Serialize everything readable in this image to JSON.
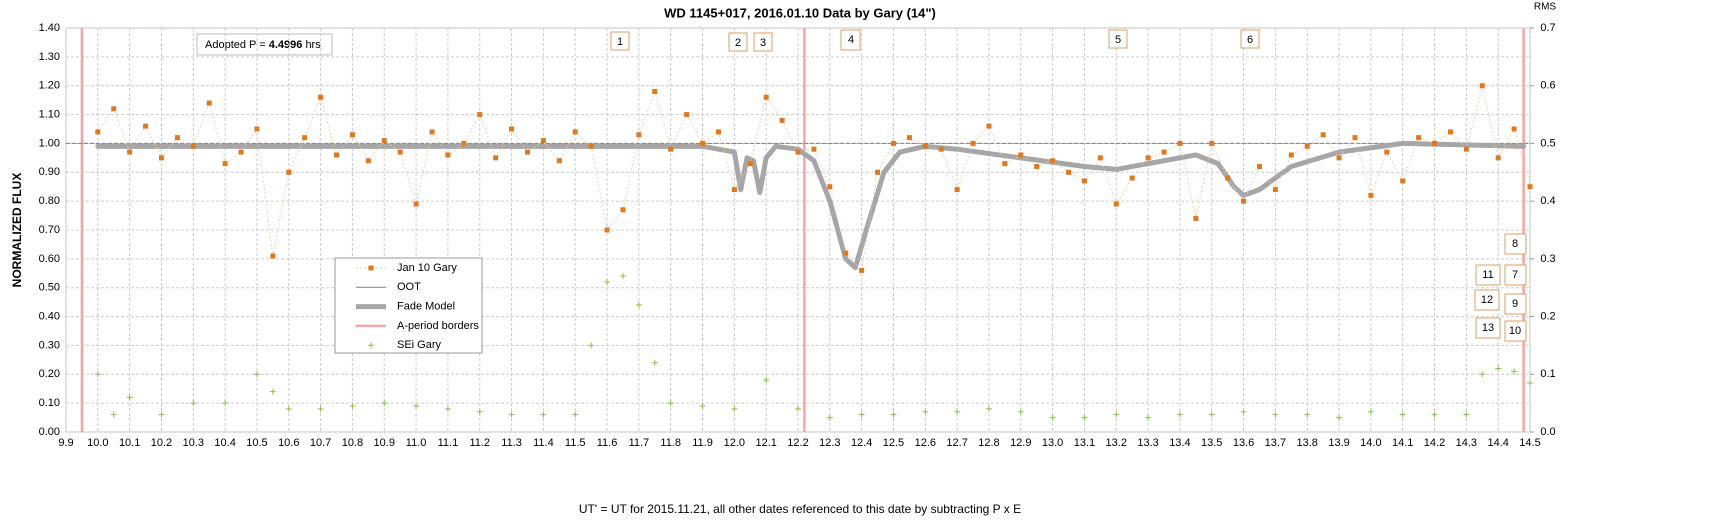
{
  "chart_data": {
    "type": "scatter",
    "title": "WD 1145+017, 2016.01.10 Data by Gary (14\")",
    "x_label": "UT' = UT for 2015.11.21, all other dates referenced to this date by subtracting P x E",
    "y_label": "NORMALIZED FLUX",
    "y2_label": "RMS",
    "adopted": {
      "label": "Adopted P =",
      "value": 4.4996,
      "unit": "hrs"
    },
    "annotations": [
      "1",
      "2",
      "3",
      "4",
      "5",
      "6",
      "7",
      "8",
      "9",
      "10",
      "11",
      "12",
      "13"
    ],
    "xlim": [
      9.9,
      14.5
    ],
    "ylim": [
      0,
      1.4
    ],
    "y2lim": [
      0,
      0.7
    ],
    "grid": true,
    "xticks": [
      9.9,
      {
        "value": 10,
        "label": "10.0"
      },
      10.1,
      10.2,
      10.3,
      10.4,
      10.5,
      10.6,
      10.7,
      10.8,
      10.9,
      {
        "value": 11,
        "label": "11.0"
      },
      11.1,
      11.2,
      11.3,
      11.4,
      11.5,
      11.6,
      11.7,
      11.8,
      11.9,
      {
        "value": 12,
        "label": "12.0"
      },
      12.1,
      12.2,
      12.3,
      12.4,
      12.5,
      12.6,
      12.7,
      12.8,
      12.9,
      {
        "value": 13,
        "label": "13.0"
      },
      13.1,
      13.2,
      13.3,
      13.4,
      13.5,
      13.6,
      13.7,
      13.8,
      13.9,
      {
        "value": 14,
        "label": "14.0"
      },
      14.1,
      14.2,
      14.3,
      14.4,
      14.5
    ],
    "yticks": [
      {
        "value": 0,
        "label": "0.00"
      },
      {
        "value": 0.1,
        "label": "0.10"
      },
      {
        "value": 0.2,
        "label": "0.20"
      },
      {
        "value": 0.3,
        "label": "0.30"
      },
      {
        "value": 0.4,
        "label": "0.40"
      },
      {
        "value": 0.5,
        "label": "0.50"
      },
      {
        "value": 0.6,
        "label": "0.60"
      },
      {
        "value": 0.7,
        "label": "0.70"
      },
      {
        "value": 0.8,
        "label": "0.80"
      },
      {
        "value": 0.9,
        "label": "0.90"
      },
      {
        "value": 1,
        "label": "1.00"
      },
      {
        "value": 1.1,
        "label": "1.10"
      },
      {
        "value": 1.2,
        "label": "1.20"
      },
      {
        "value": 1.3,
        "label": "1.30"
      },
      {
        "value": 1.4,
        "label": "1.40"
      }
    ],
    "y2ticks": [
      {
        "value": 0,
        "label": "0.0"
      },
      0.1,
      0.2,
      0.3,
      0.4,
      0.5,
      0.6,
      0.7
    ],
    "series": [
      {
        "name": "Jan 10 Gary",
        "mark": "square",
        "color": "#e07820",
        "x": [
          10.0,
          10.05,
          10.1,
          10.15,
          10.2,
          10.25,
          10.3,
          10.35,
          10.4,
          10.45,
          10.5,
          10.55,
          10.6,
          10.65,
          10.7,
          10.75,
          10.8,
          10.85,
          10.9,
          10.95,
          11.0,
          11.05,
          11.1,
          11.15,
          11.2,
          11.25,
          11.3,
          11.35,
          11.4,
          11.45,
          11.5,
          11.55,
          11.6,
          11.65,
          11.7,
          11.75,
          11.8,
          11.85,
          11.9,
          11.95,
          12.0,
          12.05,
          12.1,
          12.15,
          12.2,
          12.25,
          12.3,
          12.35,
          12.4,
          12.45,
          12.5,
          12.55,
          12.6,
          12.65,
          12.7,
          12.75,
          12.8,
          12.85,
          12.9,
          12.95,
          13.0,
          13.05,
          13.1,
          13.15,
          13.2,
          13.25,
          13.3,
          13.35,
          13.4,
          13.45,
          13.5,
          13.55,
          13.6,
          13.65,
          13.7,
          13.75,
          13.8,
          13.85,
          13.9,
          13.95,
          14.0,
          14.05,
          14.1,
          14.15,
          14.2,
          14.25,
          14.3,
          14.35,
          14.4,
          14.45,
          14.5
        ],
        "values": [
          1.04,
          1.12,
          0.97,
          1.06,
          0.95,
          1.02,
          0.99,
          1.14,
          0.93,
          0.97,
          1.05,
          0.61,
          0.9,
          1.02,
          1.16,
          0.96,
          1.03,
          0.94,
          1.01,
          0.97,
          0.79,
          1.04,
          0.96,
          1.0,
          1.1,
          0.95,
          1.05,
          0.97,
          1.01,
          0.94,
          1.04,
          0.99,
          0.7,
          0.77,
          1.03,
          1.18,
          0.98,
          1.1,
          1.0,
          1.04,
          0.84,
          0.93,
          1.16,
          1.08,
          0.97,
          0.98,
          0.85,
          0.62,
          0.56,
          0.9,
          1.0,
          1.02,
          0.99,
          0.98,
          0.84,
          1.0,
          1.06,
          0.93,
          0.96,
          0.92,
          0.94,
          0.9,
          0.87,
          0.95,
          0.79,
          0.88,
          0.95,
          0.97,
          1.0,
          0.74,
          1.0,
          0.88,
          0.8,
          0.92,
          0.84,
          0.96,
          0.99,
          1.03,
          0.95,
          1.02,
          0.82,
          0.97,
          0.87,
          1.02,
          1.0,
          1.04,
          0.98,
          1.2,
          0.95,
          1.05,
          0.85
        ]
      },
      {
        "name": "OOT",
        "mark": "line",
        "color": "#808080",
        "x": [
          9.9,
          14.5
        ],
        "values": [
          1,
          1
        ]
      },
      {
        "name": "Fade Model",
        "mark": "thick",
        "color": "#a6a6a6",
        "x": [
          10.0,
          11.9,
          12.0,
          12.02,
          12.04,
          12.06,
          12.08,
          12.1,
          12.13,
          12.2,
          12.25,
          12.3,
          12.35,
          12.38,
          12.42,
          12.47,
          12.52,
          12.6,
          12.7,
          12.9,
          13.1,
          13.2,
          13.3,
          13.45,
          13.52,
          13.57,
          13.6,
          13.65,
          13.75,
          13.9,
          14.1,
          14.48
        ],
        "values": [
          0.99,
          0.99,
          0.97,
          0.84,
          0.95,
          0.94,
          0.83,
          0.95,
          0.99,
          0.98,
          0.94,
          0.8,
          0.6,
          0.57,
          0.72,
          0.9,
          0.97,
          0.99,
          0.98,
          0.95,
          0.92,
          0.91,
          0.93,
          0.96,
          0.93,
          0.85,
          0.82,
          0.84,
          0.92,
          0.97,
          1.0,
          0.99
        ]
      },
      {
        "name": "A-period borders",
        "mark": "vline",
        "color": "#f4a6a6",
        "x": [
          9.95,
          12.22,
          14.48
        ]
      },
      {
        "name": "SEi Gary",
        "mark": "plus",
        "color": "#8cbf4f",
        "axis": "y2",
        "x": [
          10.0,
          10.05,
          10.1,
          10.2,
          10.3,
          10.4,
          10.5,
          10.55,
          10.6,
          10.7,
          10.8,
          10.9,
          11.0,
          11.1,
          11.2,
          11.3,
          11.4,
          11.5,
          11.55,
          11.6,
          11.65,
          11.7,
          11.75,
          11.8,
          11.9,
          12.0,
          12.1,
          12.2,
          12.3,
          12.4,
          12.5,
          12.6,
          12.7,
          12.8,
          12.9,
          13.0,
          13.1,
          13.2,
          13.3,
          13.4,
          13.5,
          13.6,
          13.7,
          13.8,
          13.9,
          14.0,
          14.1,
          14.2,
          14.3,
          14.35,
          14.4,
          14.45,
          14.5
        ],
        "values": [
          0.1,
          0.03,
          0.06,
          0.03,
          0.05,
          0.05,
          0.1,
          0.07,
          0.04,
          0.04,
          0.045,
          0.05,
          0.045,
          0.04,
          0.035,
          0.03,
          0.03,
          0.03,
          0.15,
          0.26,
          0.27,
          0.22,
          0.12,
          0.05,
          0.045,
          0.04,
          0.09,
          0.04,
          0.025,
          0.03,
          0.03,
          0.035,
          0.035,
          0.04,
          0.035,
          0.025,
          0.025,
          0.03,
          0.025,
          0.03,
          0.03,
          0.035,
          0.03,
          0.03,
          0.025,
          0.035,
          0.03,
          0.03,
          0.03,
          0.1,
          0.11,
          0.105,
          0.085
        ]
      }
    ]
  }
}
